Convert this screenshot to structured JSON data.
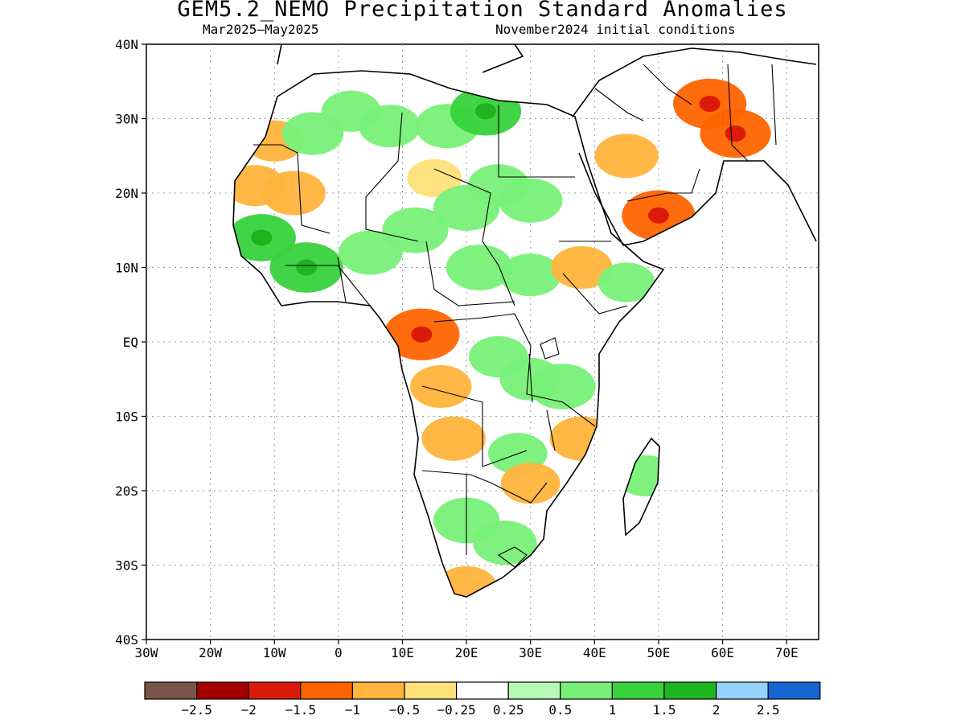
{
  "title": "GEM5.2_NEMO Precipitation Standard Anomalies",
  "period": "Mar2025—May2025",
  "initial_conditions": "November2024 initial conditions",
  "map": {
    "lon_range": [
      -30,
      75
    ],
    "lat_range": [
      -40,
      40
    ],
    "lon_ticks": [
      {
        "value": -30,
        "label": "30W"
      },
      {
        "value": -20,
        "label": "20W"
      },
      {
        "value": -10,
        "label": "10W"
      },
      {
        "value": 0,
        "label": "0"
      },
      {
        "value": 10,
        "label": "10E"
      },
      {
        "value": 20,
        "label": "20E"
      },
      {
        "value": 30,
        "label": "30E"
      },
      {
        "value": 40,
        "label": "40E"
      },
      {
        "value": 50,
        "label": "50E"
      },
      {
        "value": 60,
        "label": "60E"
      },
      {
        "value": 70,
        "label": "70E"
      }
    ],
    "lat_ticks": [
      {
        "value": 40,
        "label": "40N"
      },
      {
        "value": 30,
        "label": "30N"
      },
      {
        "value": 20,
        "label": "20N"
      },
      {
        "value": 10,
        "label": "10N"
      },
      {
        "value": 0,
        "label": "EQ"
      },
      {
        "value": -10,
        "label": "10S"
      },
      {
        "value": -20,
        "label": "20S"
      },
      {
        "value": -30,
        "label": "30S"
      },
      {
        "value": -40,
        "label": "40S"
      }
    ],
    "grid": "dotted"
  },
  "colorbar": {
    "colors": [
      "#7a5446",
      "#a50000",
      "#dc1a0a",
      "#ff6400",
      "#ffb43c",
      "#ffe17a",
      "#ffffff",
      "#b4fab4",
      "#78f078",
      "#37d23c",
      "#1eb41e",
      "#96d2fa",
      "#1464d2"
    ],
    "labels": [
      "−2.5",
      "−2",
      "−1.5",
      "−1",
      "−0.5",
      "−0.25",
      "0.25",
      "0.5",
      "1",
      "1.5",
      "2",
      "2.5"
    ]
  },
  "anomalies": [
    {
      "lon": -10,
      "lat": 27,
      "value": -0.6
    },
    {
      "lon": -4,
      "lat": 28,
      "value": 0.7
    },
    {
      "lon": 2,
      "lat": 31,
      "value": 0.6
    },
    {
      "lon": 8,
      "lat": 29,
      "value": 0.7
    },
    {
      "lon": 17,
      "lat": 29,
      "value": 0.8
    },
    {
      "lon": 23,
      "lat": 31,
      "value": 1.1
    },
    {
      "lon": -13,
      "lat": 21,
      "value": -0.6
    },
    {
      "lon": -7,
      "lat": 20,
      "value": -0.8
    },
    {
      "lon": 15,
      "lat": 22,
      "value": -0.4
    },
    {
      "lon": 25,
      "lat": 21,
      "value": 0.7
    },
    {
      "lon": 30,
      "lat": 19,
      "value": 0.8
    },
    {
      "lon": 20,
      "lat": 18,
      "value": 0.9
    },
    {
      "lon": -12,
      "lat": 14,
      "value": 1.0
    },
    {
      "lon": -5,
      "lat": 10,
      "value": 1.2
    },
    {
      "lon": 5,
      "lat": 12,
      "value": 0.8
    },
    {
      "lon": 12,
      "lat": 15,
      "value": 0.9
    },
    {
      "lon": 22,
      "lat": 10,
      "value": 0.9
    },
    {
      "lon": 30,
      "lat": 9,
      "value": 0.7
    },
    {
      "lon": 38,
      "lat": 10,
      "value": -0.7
    },
    {
      "lon": 45,
      "lat": 8,
      "value": 0.5
    },
    {
      "lon": 13,
      "lat": 1,
      "value": -1.3
    },
    {
      "lon": 16,
      "lat": -6,
      "value": -0.7
    },
    {
      "lon": 18,
      "lat": -13,
      "value": -0.8
    },
    {
      "lon": 25,
      "lat": -2,
      "value": 0.6
    },
    {
      "lon": 30,
      "lat": -5,
      "value": 0.7
    },
    {
      "lon": 35,
      "lat": -6,
      "value": 0.9
    },
    {
      "lon": 38,
      "lat": -13,
      "value": -0.8
    },
    {
      "lon": 28,
      "lat": -15,
      "value": 0.6
    },
    {
      "lon": 30,
      "lat": -19,
      "value": -0.6
    },
    {
      "lon": 20,
      "lat": -24,
      "value": 0.9
    },
    {
      "lon": 26,
      "lat": -27,
      "value": 0.8
    },
    {
      "lon": 20,
      "lat": -33,
      "value": -0.7
    },
    {
      "lon": 48,
      "lat": -18,
      "value": 0.6
    },
    {
      "lon": 45,
      "lat": 25,
      "value": -0.8
    },
    {
      "lon": 58,
      "lat": 32,
      "value": -1.2
    },
    {
      "lon": 62,
      "lat": 28,
      "value": -1.1
    },
    {
      "lon": 50,
      "lat": 17,
      "value": -1.2
    }
  ]
}
